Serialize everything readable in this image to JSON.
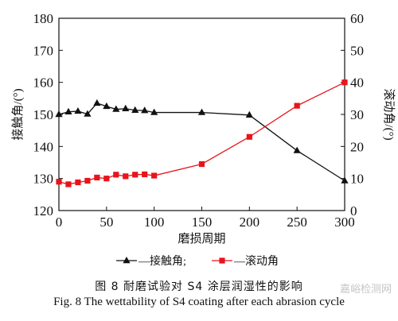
{
  "chart_data": {
    "type": "line",
    "x": [
      0,
      10,
      20,
      30,
      40,
      50,
      60,
      70,
      80,
      90,
      100,
      150,
      200,
      250,
      300
    ],
    "xlabel": "磨损周期",
    "xlim": [
      0,
      300
    ],
    "xticks": [
      0,
      50,
      100,
      150,
      200,
      250,
      300
    ],
    "ylabel_left": "接触角/(°)",
    "ylim_left": [
      120,
      180
    ],
    "yticks_left": [
      120,
      130,
      140,
      150,
      160,
      170,
      180
    ],
    "ylabel_right": "滚动角/(°)",
    "ylim_right": [
      0,
      60
    ],
    "yticks_right": [
      0,
      10,
      20,
      30,
      40,
      50,
      60
    ],
    "grid": false,
    "legend_position": "bottom",
    "series": [
      {
        "name": "—接触角;",
        "axis": "left",
        "marker": "triangle",
        "color": "#111111",
        "values": [
          150.0,
          150.8,
          151.0,
          150.1,
          153.5,
          152.5,
          151.6,
          151.8,
          151.3,
          151.2,
          150.6,
          150.6,
          149.8,
          138.7,
          129.3
        ]
      },
      {
        "name": "—滚动角",
        "axis": "right",
        "marker": "square",
        "color": "#e8141b",
        "values": [
          9.0,
          8.2,
          8.8,
          9.3,
          10.3,
          10.0,
          11.2,
          10.7,
          11.2,
          11.3,
          10.9,
          14.5,
          23.0,
          32.7,
          40.0
        ]
      }
    ]
  },
  "caption": {
    "cn": "图 8    耐磨试验对 S4 涂层润湿性的影响",
    "en": "Fig. 8    The wettability of S4 coating after each abrasion cycle"
  },
  "watermark": "嘉峪检测网"
}
